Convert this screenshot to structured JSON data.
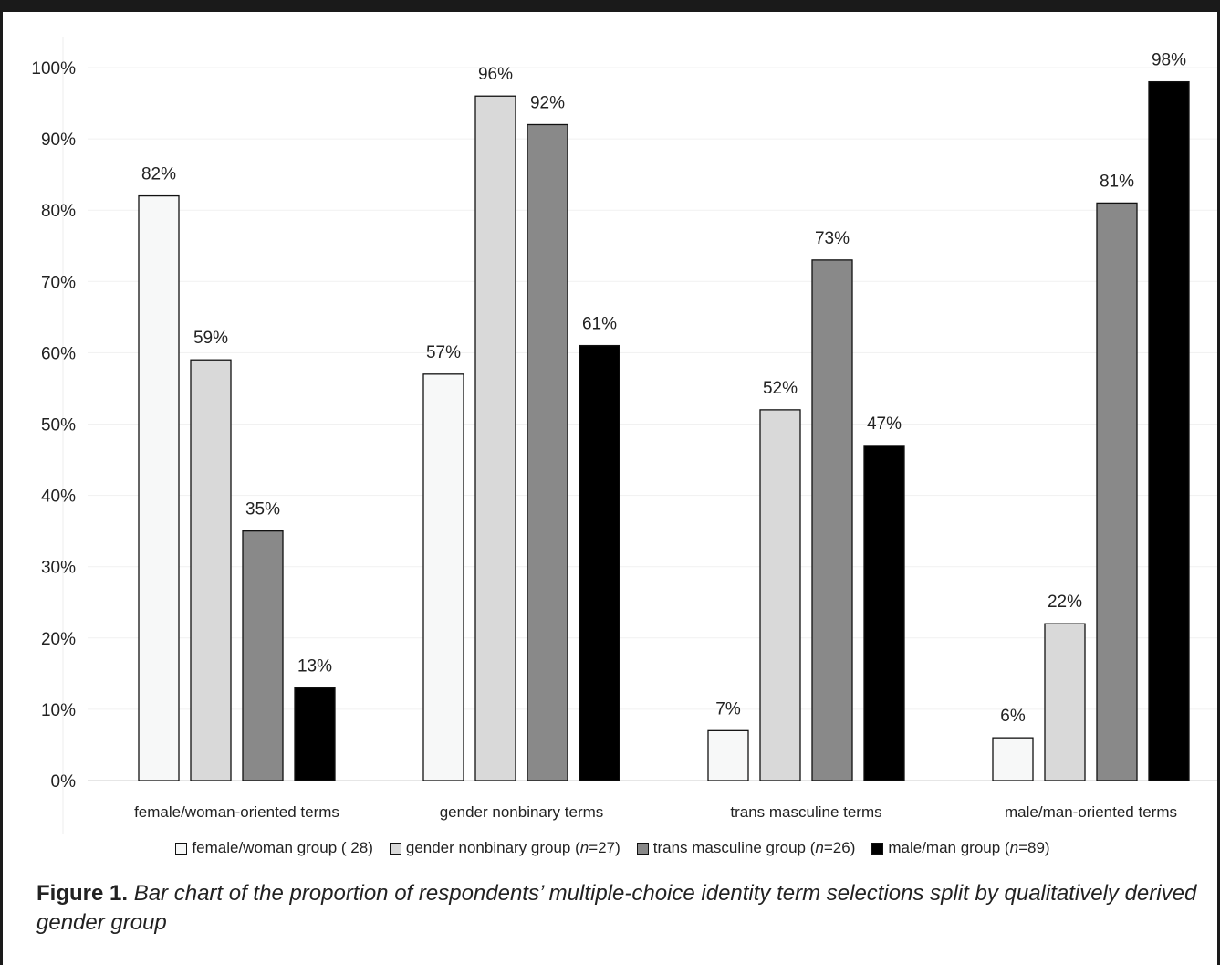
{
  "chart_data": {
    "type": "bar",
    "categories": [
      "female/woman-oriented terms",
      "gender nonbinary terms",
      "trans masculine terms",
      "male/man-oriented terms"
    ],
    "series": [
      {
        "name": "female/woman group ( 28)",
        "color": "#f7f8f8",
        "values": [
          82,
          57,
          7,
          6
        ],
        "labels": [
          "82%",
          "57%",
          "7%",
          "6%"
        ]
      },
      {
        "name": "gender nonbinary group (n=27)",
        "color": "#d9d9d9",
        "values": [
          59,
          96,
          52,
          22
        ],
        "labels": [
          "59%",
          "96%",
          "52%",
          "22%"
        ]
      },
      {
        "name": "trans masculine group (n=26)",
        "color": "#898989",
        "values": [
          35,
          92,
          73,
          81
        ],
        "labels": [
          "35%",
          "92%",
          "73%",
          "81%"
        ]
      },
      {
        "name": "male/man group (n=89)",
        "color": "#000000",
        "values": [
          13,
          61,
          47,
          98
        ],
        "labels": [
          "13%",
          "61%",
          "47%",
          "98%"
        ]
      }
    ],
    "yticks": [
      "0%",
      "10%",
      "20%",
      "30%",
      "40%",
      "50%",
      "60%",
      "70%",
      "80%",
      "90%",
      "100%"
    ],
    "ylim": [
      0,
      100
    ],
    "grid": true,
    "legend_position": "bottom"
  },
  "legend": [
    {
      "pre": "female/woman group ( 28)",
      "n": "",
      "post": ""
    },
    {
      "pre": "gender nonbinary group (",
      "n": "n",
      "post": "=27)"
    },
    {
      "pre": "trans masculine group (",
      "n": "n",
      "post": "=26)"
    },
    {
      "pre": "male/man group (",
      "n": "n",
      "post": "=89)"
    }
  ],
  "caption": {
    "number": "Figure 1.",
    "text": "Bar chart of the proportion of respondents’ multiple-choice identity term selections split by qualitatively derived gender group"
  }
}
